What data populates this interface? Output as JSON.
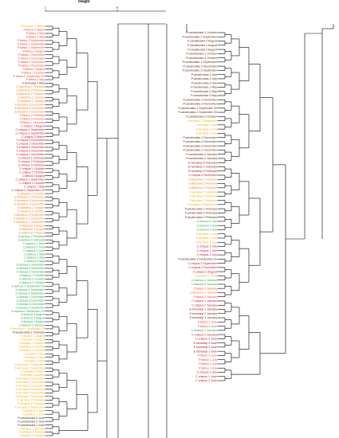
{
  "chart_data": {
    "type": "dendrogram",
    "axis_title": "Height",
    "axis_ticks": [
      "1",
      "0"
    ],
    "colors": {
      "P_fabica": "#ef4b3a",
      "E_hemsleyi": "#8b1a2a",
      "C_crispus": "#c0133b",
      "S_latissima": "#f28a2e",
      "U_lactuca": "#2fa84f",
      "F_serratus": "#f2b01f",
      "P_canaliculata": "#5a3320",
      "branch": "#000000"
    },
    "left_panel_labels": [
      {
        "text": "P.serratus 1 March",
        "group": "F_serratus"
      },
      {
        "text": "P.fabica 2 March",
        "group": "P_fabica"
      },
      {
        "text": "P.fabica 3 May",
        "group": "P_fabica"
      },
      {
        "text": "P.fabica 2 May",
        "group": "P_fabica"
      },
      {
        "text": "P.fabica 3 September",
        "group": "P_fabica"
      },
      {
        "text": "P.fabica 2 September",
        "group": "P_fabica"
      },
      {
        "text": "P.fabica 1 September",
        "group": "P_fabica"
      },
      {
        "text": "P.fabica 3 August",
        "group": "P_fabica"
      },
      {
        "text": "P.fabica 1 November",
        "group": "P_fabica"
      },
      {
        "text": "P.fabica 1 December",
        "group": "P_fabica"
      },
      {
        "text": "P.fabica 2 November",
        "group": "P_fabica"
      },
      {
        "text": "P.fabica 3 November",
        "group": "P_fabica"
      },
      {
        "text": "P.fabica 1 August",
        "group": "P_fabica"
      },
      {
        "text": "P.fabica 1 October",
        "group": "P_fabica"
      },
      {
        "text": "P.fabica 2 September 20",
        "group": "P_fabica"
      },
      {
        "text": "P.fabica 1 May",
        "group": "P_fabica"
      },
      {
        "text": "E.hemsleyi 1 May",
        "group": "E_hemsleyi"
      },
      {
        "text": "S.latissima 2 February",
        "group": "S_latissima"
      },
      {
        "text": "S.latissima 3 February",
        "group": "S_latissima"
      },
      {
        "text": "S.latissima 1 February",
        "group": "S_latissima"
      },
      {
        "text": "S.latissima 3 January",
        "group": "S_latissima"
      },
      {
        "text": "S.latissima 2 January",
        "group": "S_latissima"
      },
      {
        "text": "S.latissima 1 December",
        "group": "S_latissima"
      },
      {
        "text": "S.latissima 2 December",
        "group": "S_latissima"
      },
      {
        "text": "S.latissima 3 December",
        "group": "S_latissima"
      },
      {
        "text": "P.fabica 2 February",
        "group": "P_fabica"
      },
      {
        "text": "P.fabica 3 February",
        "group": "P_fabica"
      },
      {
        "text": "P.fabica 1 February",
        "group": "P_fabica"
      },
      {
        "text": "C.crispus 1 August",
        "group": "C_crispus"
      },
      {
        "text": "C.crispus 3 September",
        "group": "C_crispus"
      },
      {
        "text": "C.crispus 2 September",
        "group": "C_crispus"
      },
      {
        "text": "C.crispus 3 March",
        "group": "C_crispus"
      },
      {
        "text": "C.crispus 3 December",
        "group": "C_crispus"
      },
      {
        "text": "C.crispus 1 December",
        "group": "C_crispus"
      },
      {
        "text": "C.crispus 2 November",
        "group": "C_crispus"
      },
      {
        "text": "C.crispus 3 November",
        "group": "C_crispus"
      },
      {
        "text": "C.crispus 1 November",
        "group": "C_crispus"
      },
      {
        "text": "C.crispus 1 February",
        "group": "C_crispus"
      },
      {
        "text": "C.crispus 2 February",
        "group": "C_crispus"
      },
      {
        "text": "C.crispus 3 February",
        "group": "C_crispus"
      },
      {
        "text": "C.crispus 1 October",
        "group": "C_crispus"
      },
      {
        "text": "C.crispus 2 October",
        "group": "C_crispus"
      },
      {
        "text": "C.fabica 3 August",
        "group": "C_crispus"
      },
      {
        "text": "C.crispus 1 September",
        "group": "C_crispus"
      },
      {
        "text": "C.crispus 3 October",
        "group": "C_crispus"
      },
      {
        "text": "C.crispus 1 May",
        "group": "C_crispus"
      },
      {
        "text": "C.crispus 2 September 20",
        "group": "C_crispus"
      },
      {
        "text": "S.latissima 1 October",
        "group": "S_latissima"
      },
      {
        "text": "S.latissima 2 November",
        "group": "S_latissima"
      },
      {
        "text": "S.latissima 3 November",
        "group": "S_latissima"
      },
      {
        "text": "S.latissima 1 November",
        "group": "S_latissima"
      },
      {
        "text": "S.latissima 2 October",
        "group": "S_latissima"
      },
      {
        "text": "S.latissima 3 October",
        "group": "S_latissima"
      },
      {
        "text": "S.latissima 3 September",
        "group": "S_latissima"
      },
      {
        "text": "S.latissima 2 September",
        "group": "S_latissima"
      },
      {
        "text": "S.latissima 1 September",
        "group": "S_latissima"
      },
      {
        "text": "S.latissima 3 August",
        "group": "S_latissima"
      },
      {
        "text": "S.latissima 1 August",
        "group": "S_latissima"
      },
      {
        "text": "S.latissima 2 August",
        "group": "S_latissima"
      },
      {
        "text": "U.lactuca 2 February",
        "group": "U_lactuca"
      },
      {
        "text": "U.lactuca 3 February",
        "group": "U_lactuca"
      },
      {
        "text": "U.lactuca 1 June",
        "group": "U_lactuca"
      },
      {
        "text": "U.lactuca 2 June",
        "group": "U_lactuca"
      },
      {
        "text": "U.lactuca 3 June",
        "group": "U_lactuca"
      },
      {
        "text": "U.lactuca 1 May",
        "group": "U_lactuca"
      },
      {
        "text": "U.lactuca 2 May",
        "group": "U_lactuca"
      },
      {
        "text": "U.lactuca 3 May",
        "group": "U_lactuca"
      },
      {
        "text": "U.lactuca 1 November",
        "group": "U_lactuca"
      },
      {
        "text": "U.lactuca 2 November",
        "group": "U_lactuca"
      },
      {
        "text": "U.lactuca 3 November",
        "group": "U_lactuca"
      },
      {
        "text": "U.lactuca 1 October",
        "group": "U_lactuca"
      },
      {
        "text": "U.lactuca 2 October",
        "group": "U_lactuca"
      },
      {
        "text": "U.lactuca 3 October",
        "group": "U_lactuca"
      },
      {
        "text": "U.lactuca 1 September 20",
        "group": "U_lactuca"
      },
      {
        "text": "U.lactuca 2 September",
        "group": "U_lactuca"
      },
      {
        "text": "U.lactuca 3 September",
        "group": "U_lactuca"
      },
      {
        "text": "U.lactuca 1 December",
        "group": "U_lactuca"
      },
      {
        "text": "U.lactuca 2 December",
        "group": "U_lactuca"
      },
      {
        "text": "U.lactuca 3 December",
        "group": "U_lactuca"
      },
      {
        "text": "U.lactuca 1 September",
        "group": "U_lactuca"
      },
      {
        "text": "U.lactuca 2 September 20",
        "group": "U_lactuca"
      },
      {
        "text": "U.lactuca 3 August",
        "group": "U_lactuca"
      },
      {
        "text": "U.lactuca 1 August",
        "group": "U_lactuca"
      },
      {
        "text": "U.lactuca 2 August",
        "group": "U_lactuca"
      },
      {
        "text": "U.lactuca 3 January",
        "group": "U_lactuca"
      },
      {
        "text": "P.serratus 3 September 20",
        "group": "F_serratus"
      },
      {
        "text": "P.canaliculata 1 February",
        "group": "P_canaliculata"
      },
      {
        "text": "F.serratus 1 August",
        "group": "F_serratus"
      },
      {
        "text": "F.serratus 2 August",
        "group": "F_serratus"
      },
      {
        "text": "F.serratus 1 October",
        "group": "F_serratus"
      },
      {
        "text": "F.serratus 2 October",
        "group": "F_serratus"
      },
      {
        "text": "F.serratus 3 October",
        "group": "F_serratus"
      },
      {
        "text": "F.serratus 1 May",
        "group": "F_serratus"
      },
      {
        "text": "F.serratus 2 May",
        "group": "F_serratus"
      },
      {
        "text": "F.serratus 3 May",
        "group": "F_serratus"
      },
      {
        "text": "F.serratus 1 September",
        "group": "F_serratus"
      },
      {
        "text": "F.serratus 2 September",
        "group": "F_serratus"
      },
      {
        "text": "F.serratus 2 March",
        "group": "F_serratus"
      },
      {
        "text": "F.serratus 3 August",
        "group": "F_serratus"
      },
      {
        "text": "F.serratus 2 December",
        "group": "F_serratus"
      },
      {
        "text": "F.serratus 3 December",
        "group": "F_serratus"
      },
      {
        "text": "F.serratus 1 December",
        "group": "F_serratus"
      },
      {
        "text": "F.serratus 2 November",
        "group": "F_serratus"
      },
      {
        "text": "F.serratus 3 November",
        "group": "F_serratus"
      },
      {
        "text": "F.serratus 1 November",
        "group": "F_serratus"
      },
      {
        "text": "F.serratus 3 February",
        "group": "F_serratus"
      },
      {
        "text": "F.serratus 2 February",
        "group": "F_serratus"
      },
      {
        "text": "F.serratus 3 September",
        "group": "F_serratus"
      },
      {
        "text": "F.serratus 3 June",
        "group": "F_serratus"
      },
      {
        "text": "F.serratus 1 June",
        "group": "F_serratus"
      },
      {
        "text": "P.canaliculata 3 June",
        "group": "P_canaliculata"
      },
      {
        "text": "P.canaliculata 2 June",
        "group": "P_canaliculata"
      },
      {
        "text": "P.canaliculata 1 June",
        "group": "P_canaliculata"
      },
      {
        "text": "F.serratus 1 January",
        "group": "F_serratus"
      },
      {
        "text": "F.serratus 2 January",
        "group": "F_serratus"
      },
      {
        "text": "F.serratus 3 January",
        "group": "F_serratus"
      }
    ],
    "right_panel_labels": [
      {
        "text": "P.canaliculata 1 October",
        "group": "P_canaliculata"
      },
      {
        "text": "P.canaliculata 2 September",
        "group": "P_canaliculata"
      },
      {
        "text": "P.canaliculata 3 August",
        "group": "P_canaliculata"
      },
      {
        "text": "P.canaliculata 1 August",
        "group": "P_canaliculata"
      },
      {
        "text": "P.canaliculata 2 August",
        "group": "P_canaliculata"
      },
      {
        "text": "P.canaliculata 2 October",
        "group": "P_canaliculata"
      },
      {
        "text": "P.canaliculata 3 October",
        "group": "P_canaliculata"
      },
      {
        "text": "P.canaliculata 1 September",
        "group": "P_canaliculata"
      },
      {
        "text": "P.canaliculata 2 November",
        "group": "P_canaliculata"
      },
      {
        "text": "P.canaliculata 3 September",
        "group": "P_canaliculata"
      },
      {
        "text": "P.canaliculata 1 July",
        "group": "P_canaliculata"
      },
      {
        "text": "P.canaliculata 2 July",
        "group": "P_canaliculata"
      },
      {
        "text": "P.canaliculata 3 July",
        "group": "P_canaliculata"
      },
      {
        "text": "P.canaliculata 1 May",
        "group": "P_canaliculata"
      },
      {
        "text": "P.canaliculata 2 May",
        "group": "P_canaliculata"
      },
      {
        "text": "P.canaliculata 3 May",
        "group": "P_canaliculata"
      },
      {
        "text": "P.canaliculata 1 November",
        "group": "P_canaliculata"
      },
      {
        "text": "P.canaliculata 3 November",
        "group": "P_canaliculata"
      },
      {
        "text": "P.canaliculata 2 September 20",
        "group": "P_canaliculata"
      },
      {
        "text": "P.canaliculata 3 September 20",
        "group": "P_canaliculata"
      },
      {
        "text": "P.canaliculata 2 October",
        "group": "P_canaliculata"
      },
      {
        "text": "F.serratus 1 September",
        "group": "F_serratus"
      },
      {
        "text": "F.serratus 1 July",
        "group": "F_serratus"
      },
      {
        "text": "F.serratus 2 July",
        "group": "F_serratus"
      },
      {
        "text": "F.serratus 3 July",
        "group": "F_serratus"
      },
      {
        "text": "P.canaliculata 1 December",
        "group": "P_canaliculata"
      },
      {
        "text": "P.canaliculata 2 December",
        "group": "P_canaliculata"
      },
      {
        "text": "P.canaliculata 3 December",
        "group": "P_canaliculata"
      },
      {
        "text": "P.canaliculata 1 December",
        "group": "P_canaliculata"
      },
      {
        "text": "P.canaliculata 2 January",
        "group": "P_canaliculata"
      },
      {
        "text": "P.canaliculata 3 January",
        "group": "P_canaliculata"
      },
      {
        "text": "E.hemsleyi 3 February",
        "group": "E_hemsleyi"
      },
      {
        "text": "E.hemsleyi 1 February",
        "group": "E_hemsleyi"
      },
      {
        "text": "E.hemsleyi 2 February",
        "group": "E_hemsleyi"
      },
      {
        "text": "C.crispus 3 November",
        "group": "C_crispus"
      },
      {
        "text": "S.latissima 1 February",
        "group": "S_latissima"
      },
      {
        "text": "S.latissima 2 February",
        "group": "S_latissima"
      },
      {
        "text": "S.latissima 3 February",
        "group": "S_latissima"
      },
      {
        "text": "F.serratus 3 February",
        "group": "F_serratus"
      },
      {
        "text": "F.serratus 1 February",
        "group": "F_serratus"
      },
      {
        "text": "F.serratus 2 February",
        "group": "F_serratus"
      },
      {
        "text": "F.serratus 3 September",
        "group": "F_serratus"
      },
      {
        "text": "P.canaliculata 1 February",
        "group": "P_canaliculata"
      },
      {
        "text": "P.canaliculata 2 February",
        "group": "P_canaliculata"
      },
      {
        "text": "P.canaliculata 3 February",
        "group": "P_canaliculata"
      },
      {
        "text": "U.lactuca 1 July",
        "group": "U_lactuca"
      },
      {
        "text": "U.lactuca 2 July",
        "group": "U_lactuca"
      },
      {
        "text": "U.lactuca 3 July",
        "group": "U_lactuca"
      },
      {
        "text": "F.serratus 1 July",
        "group": "F_serratus"
      },
      {
        "text": "F.serratus 2 July",
        "group": "F_serratus"
      },
      {
        "text": "F.serratus 3 July",
        "group": "F_serratus"
      },
      {
        "text": "C.crispus 1 July",
        "group": "C_crispus"
      },
      {
        "text": "C.crispus 2 July",
        "group": "C_crispus"
      },
      {
        "text": "C.crispus 3 July",
        "group": "C_crispus"
      },
      {
        "text": "P.canaliculata 3 September 20",
        "group": "P_canaliculata"
      },
      {
        "text": "C.crispus 3 September",
        "group": "C_crispus"
      },
      {
        "text": "C.crispus 2 December",
        "group": "C_crispus"
      },
      {
        "text": "C.crispus 2 August",
        "group": "C_crispus"
      },
      {
        "text": "F.serratus 2 June",
        "group": "F_serratus"
      },
      {
        "text": "U.lactuca 3 January",
        "group": "U_lactuca"
      },
      {
        "text": "U.lactuca 2 January",
        "group": "U_lactuca"
      },
      {
        "text": "P.fabica 2 January",
        "group": "P_fabica"
      },
      {
        "text": "S.latissima 1 January",
        "group": "S_latissima"
      },
      {
        "text": "P.fabica 3 January",
        "group": "P_fabica"
      },
      {
        "text": "C.crispus 1 January",
        "group": "C_crispus"
      },
      {
        "text": "C.crispus 2 January",
        "group": "C_crispus"
      },
      {
        "text": "E.hemsleyi 1 January",
        "group": "E_hemsleyi"
      },
      {
        "text": "E.hemsleyi 2 January",
        "group": "E_hemsleyi"
      },
      {
        "text": "E.hemsleyi 3 January",
        "group": "E_hemsleyi"
      },
      {
        "text": "P.fabica 1 June",
        "group": "P_fabica"
      },
      {
        "text": "P.fabica 2 June",
        "group": "P_fabica"
      },
      {
        "text": "U.lactuca 1 January",
        "group": "U_lactuca"
      },
      {
        "text": "C.crispus 3 January",
        "group": "C_crispus"
      },
      {
        "text": "C.crispus 3 June",
        "group": "C_crispus"
      },
      {
        "text": "E.hemsleyi 3 June",
        "group": "E_hemsleyi"
      },
      {
        "text": "E.hemsleyi 2 June",
        "group": "E_hemsleyi"
      },
      {
        "text": "E.hemsleyi 1 June",
        "group": "E_hemsleyi"
      },
      {
        "text": "P.fabica 3 June",
        "group": "P_fabica"
      },
      {
        "text": "P.fabica 1 July",
        "group": "P_fabica"
      },
      {
        "text": "P.fabica 2 July",
        "group": "P_fabica"
      },
      {
        "text": "P.fabica 3 July",
        "group": "P_fabica"
      },
      {
        "text": "C.crispus 1 July",
        "group": "C_crispus"
      },
      {
        "text": "C.crispus 1 June",
        "group": "C_crispus"
      },
      {
        "text": "C.crispus 2 June",
        "group": "C_crispus"
      }
    ]
  }
}
